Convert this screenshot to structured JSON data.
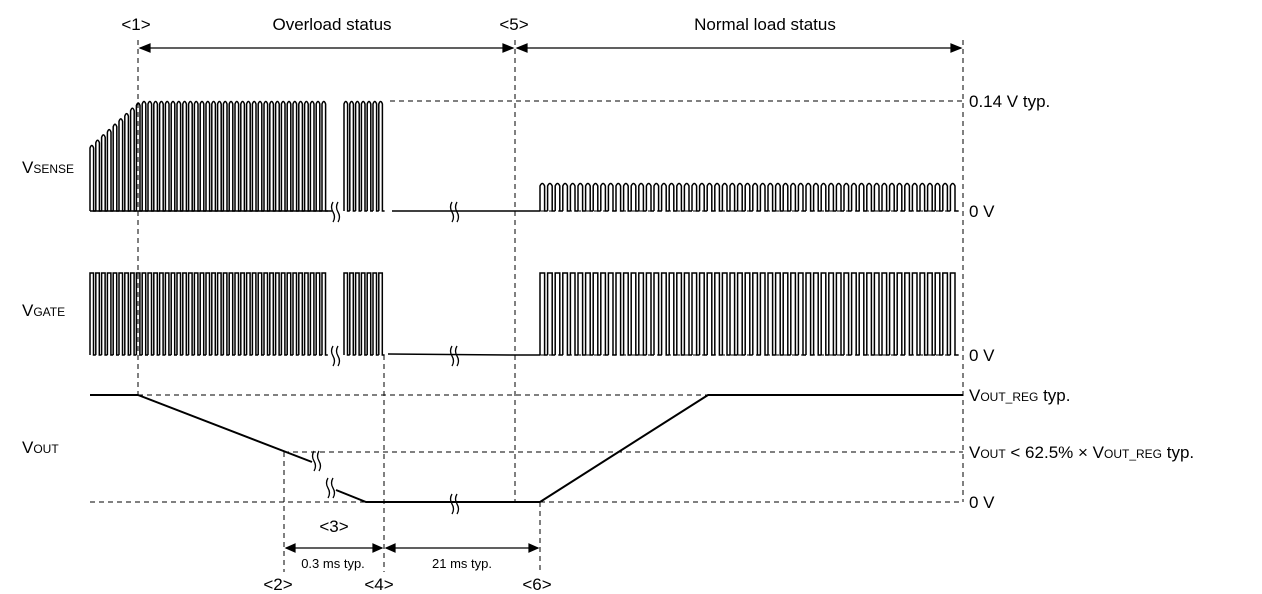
{
  "phases": {
    "marker_1": "<1>",
    "overload": "Overload status",
    "marker_5": "<5>",
    "normal": "Normal load status"
  },
  "signals": {
    "vsense": {
      "main": "V",
      "sub": "SENSE"
    },
    "vgate": {
      "main": "V",
      "sub": "GATE"
    },
    "vout": {
      "main": "V",
      "sub": "OUT"
    }
  },
  "levels": {
    "vsense_high": "0.14 V typ.",
    "vsense_low": "0 V",
    "vgate_low": "0 V",
    "vout_reg": {
      "main": "V",
      "sub": "OUT_REG",
      "suffix": " typ."
    },
    "vout_threshold": {
      "v1": "V",
      "s1": "OUT",
      "mid": " < 62.5% × V",
      "s2": "OUT_REG",
      "suffix": " typ."
    },
    "vout_low": "0 V"
  },
  "timing": {
    "marker_3": "<3>",
    "t1": "0.3 ms typ.",
    "t2": "21 ms typ.",
    "marker_2": "<2>",
    "marker_4": "<4>",
    "marker_6": "<6>"
  }
}
